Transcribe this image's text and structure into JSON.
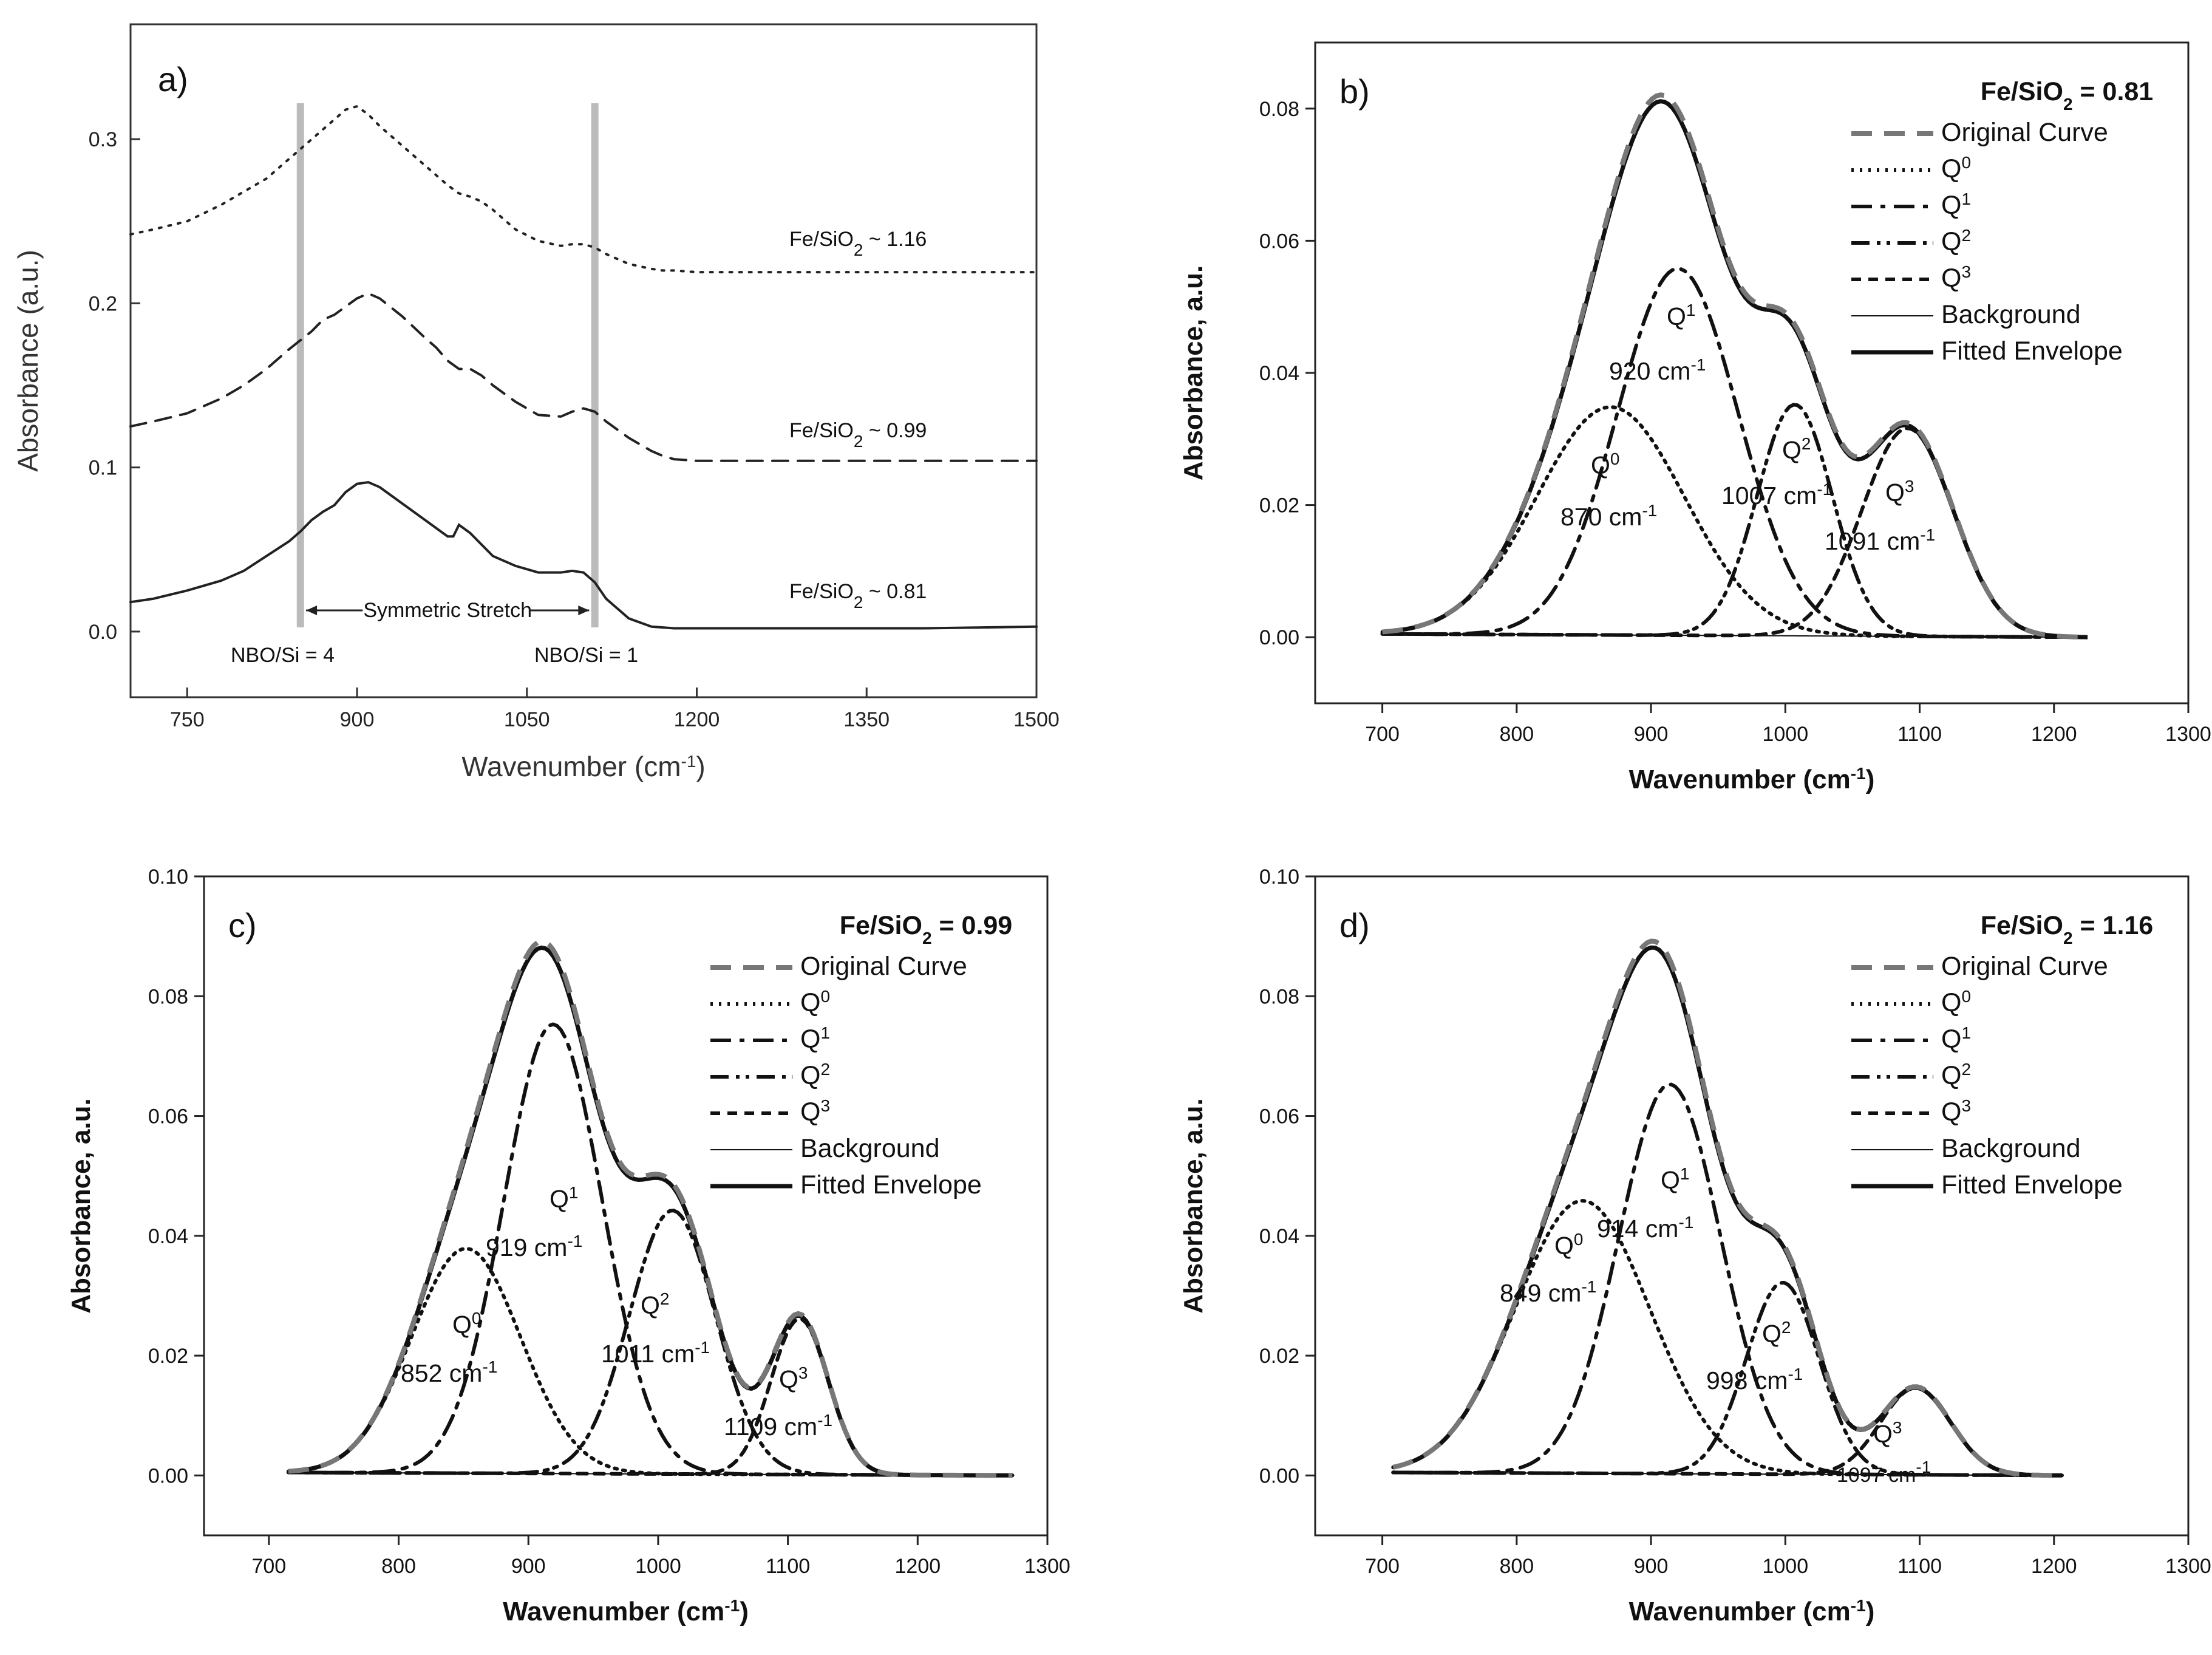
{
  "chart_data": [
    {
      "type": "line",
      "panel_label": "a)",
      "xlabel": "Wavenumber (cm",
      "xlabel_sup": "-1",
      "xlabel_end": ")",
      "ylabel": "Absorbance (a.u.)",
      "xlim": [
        700,
        1500
      ],
      "ylim": [
        -0.04,
        0.37
      ],
      "xticks": [
        750,
        900,
        1050,
        1200,
        1350,
        1500
      ],
      "yticks": [
        0.0,
        0.1,
        0.2,
        0.3
      ],
      "ytick_labels": [
        "0.0",
        "0.1",
        "0.2",
        "0.3"
      ],
      "vlines": [
        850,
        1110
      ],
      "series": [
        {
          "name": "Fe/SiO2 ~ 1.16",
          "label_main": "Fe/SiO",
          "label_sub": "2",
          "label_tail": " ~ 1.16",
          "style": "dotted",
          "offset": 0.22,
          "x": [
            700,
            720,
            750,
            780,
            800,
            820,
            840,
            860,
            880,
            890,
            900,
            910,
            920,
            940,
            960,
            980,
            990,
            1000,
            1010,
            1020,
            1040,
            1060,
            1080,
            1090,
            1100,
            1110,
            1120,
            1140,
            1160,
            1170,
            1180,
            1200,
            1300,
            1400,
            1500
          ],
          "y": [
            0.242,
            0.245,
            0.25,
            0.26,
            0.268,
            0.276,
            0.288,
            0.3,
            0.312,
            0.318,
            0.32,
            0.315,
            0.308,
            0.296,
            0.284,
            0.272,
            0.267,
            0.265,
            0.262,
            0.257,
            0.245,
            0.238,
            0.235,
            0.236,
            0.236,
            0.234,
            0.23,
            0.224,
            0.221,
            0.22,
            0.22,
            0.219,
            0.219,
            0.219,
            0.219
          ]
        },
        {
          "name": "Fe/SiO2 ~ 0.99",
          "label_main": "Fe/SiO",
          "label_sub": "2",
          "label_tail": " ~ 0.99",
          "style": "dashed",
          "offset": 0.105,
          "x": [
            700,
            720,
            750,
            780,
            800,
            820,
            840,
            860,
            870,
            880,
            890,
            900,
            910,
            920,
            940,
            960,
            970,
            980,
            990,
            1000,
            1010,
            1020,
            1040,
            1060,
            1080,
            1090,
            1100,
            1110,
            1120,
            1140,
            1160,
            1170,
            1180,
            1200,
            1300,
            1400,
            1500
          ],
          "y": [
            0.125,
            0.128,
            0.133,
            0.142,
            0.15,
            0.16,
            0.172,
            0.183,
            0.19,
            0.193,
            0.198,
            0.203,
            0.206,
            0.203,
            0.192,
            0.179,
            0.173,
            0.165,
            0.16,
            0.16,
            0.156,
            0.15,
            0.14,
            0.132,
            0.131,
            0.134,
            0.136,
            0.134,
            0.128,
            0.118,
            0.11,
            0.107,
            0.105,
            0.104,
            0.104,
            0.104,
            0.104
          ]
        },
        {
          "name": "Fe/SiO2 ~ 0.81",
          "label_main": "Fe/SiO",
          "label_sub": "2",
          "label_tail": " ~ 0.81",
          "style": "solid",
          "offset": 0.0,
          "x": [
            700,
            720,
            750,
            780,
            800,
            820,
            840,
            850,
            860,
            870,
            880,
            890,
            900,
            910,
            920,
            940,
            960,
            980,
            985,
            990,
            1000,
            1010,
            1020,
            1040,
            1060,
            1080,
            1090,
            1100,
            1110,
            1120,
            1140,
            1160,
            1180,
            1200,
            1300,
            1400,
            1500
          ],
          "y": [
            0.018,
            0.02,
            0.025,
            0.031,
            0.037,
            0.046,
            0.055,
            0.061,
            0.068,
            0.073,
            0.077,
            0.085,
            0.09,
            0.091,
            0.088,
            0.078,
            0.068,
            0.058,
            0.058,
            0.065,
            0.06,
            0.053,
            0.046,
            0.04,
            0.036,
            0.036,
            0.037,
            0.036,
            0.03,
            0.02,
            0.008,
            0.003,
            0.002,
            0.002,
            0.002,
            0.002,
            0.003
          ]
        }
      ],
      "annotations": {
        "nbo_left": "NBO/Si = 4",
        "nbo_right": "NBO/Si = 1",
        "symmetric": "Symmetric Stretch"
      }
    },
    {
      "type": "line",
      "panel_label": "b)",
      "title_main": "Fe/SiO",
      "title_sub": "2",
      "title_tail": " = 0.81",
      "xlabel": "Wavenumber (cm",
      "xlabel_sup": "-1",
      "xlabel_end": ")",
      "ylabel": "Absorbance, a.u.",
      "xlim": [
        650,
        1300
      ],
      "ylim": [
        -0.01,
        0.09
      ],
      "xticks": [
        700,
        800,
        900,
        1000,
        1100,
        1200,
        1300
      ],
      "yticks": [
        0.0,
        0.02,
        0.04,
        0.06,
        0.08
      ],
      "ytick_labels": [
        "0.00",
        "0.02",
        "0.04",
        "0.06",
        "0.08"
      ],
      "x_range": [
        700,
        1225
      ],
      "peaks": [
        {
          "name": "Q0",
          "center": 870,
          "amp": 0.0345,
          "sigma": 55
        },
        {
          "name": "Q1",
          "center": 920,
          "amp": 0.0555,
          "sigma": 45
        },
        {
          "name": "Q2",
          "center": 1007,
          "amp": 0.035,
          "sigma": 28
        },
        {
          "name": "Q3",
          "center": 1091,
          "amp": 0.0315,
          "sigma": 34
        }
      ],
      "peak_labels": [
        {
          "q": "Q",
          "sup": "0",
          "wn": "870 cm",
          "wsup": "-1"
        },
        {
          "q": "Q",
          "sup": "1",
          "wn": "920 cm",
          "wsup": "-1"
        },
        {
          "q": "Q",
          "sup": "2",
          "wn": "1007 cm",
          "wsup": "-1"
        },
        {
          "q": "Q",
          "sup": "3",
          "wn": "1091 cm",
          "wsup": "-1"
        }
      ],
      "legend": [
        "Original Curve",
        "Q0",
        "Q1",
        "Q2",
        "Q3",
        "Background",
        "Fitted Envelope"
      ]
    },
    {
      "type": "line",
      "panel_label": "c)",
      "title_main": "Fe/SiO",
      "title_sub": "2",
      "title_tail": " = 0.99",
      "xlabel": "Wavenumber (cm",
      "xlabel_sup": "-1",
      "xlabel_end": ")",
      "ylabel": "Absorbance, a.u.",
      "xlim": [
        650,
        1300
      ],
      "ylim": [
        -0.01,
        0.1
      ],
      "xticks": [
        700,
        800,
        900,
        1000,
        1100,
        1200,
        1300
      ],
      "yticks": [
        0.0,
        0.02,
        0.04,
        0.06,
        0.08,
        0.1
      ],
      "ytick_labels": [
        "0.00",
        "0.02",
        "0.04",
        "0.06",
        "0.08",
        "0.10"
      ],
      "x_range": [
        715,
        1275
      ],
      "peaks": [
        {
          "name": "Q0",
          "center": 852,
          "amp": 0.0375,
          "sigma": 42
        },
        {
          "name": "Q1",
          "center": 919,
          "amp": 0.075,
          "sigma": 38
        },
        {
          "name": "Q2",
          "center": 1011,
          "amp": 0.044,
          "sigma": 33
        },
        {
          "name": "Q3",
          "center": 1109,
          "amp": 0.026,
          "sigma": 22
        }
      ],
      "peak_labels": [
        {
          "q": "Q",
          "sup": "0",
          "wn": "852 cm",
          "wsup": "-1"
        },
        {
          "q": "Q",
          "sup": "1",
          "wn": "919 cm",
          "wsup": "-1"
        },
        {
          "q": "Q",
          "sup": "2",
          "wn": "1011 cm",
          "wsup": "-1"
        },
        {
          "q": "Q",
          "sup": "3",
          "wn": "1109 cm",
          "wsup": "-1"
        }
      ],
      "legend": [
        "Original Curve",
        "Q0",
        "Q1",
        "Q2",
        "Q3",
        "Background",
        "Fitted Envelope"
      ]
    },
    {
      "type": "line",
      "panel_label": "d)",
      "title_main": "Fe/SiO",
      "title_sub": "2",
      "title_tail": " = 1.16",
      "xlabel": "Wavenumber (cm",
      "xlabel_sup": "-1",
      "xlabel_end": ")",
      "ylabel": "Absorbance, a.u.",
      "xlim": [
        650,
        1300
      ],
      "ylim": [
        -0.01,
        0.1
      ],
      "xticks": [
        700,
        800,
        900,
        1000,
        1100,
        1200,
        1300
      ],
      "yticks": [
        0.0,
        0.02,
        0.04,
        0.06,
        0.08,
        0.1
      ],
      "ytick_labels": [
        "0.00",
        "0.02",
        "0.04",
        "0.06",
        "0.08",
        "0.10"
      ],
      "x_range": [
        708,
        1208
      ],
      "peaks": [
        {
          "name": "Q0",
          "center": 849,
          "amp": 0.0455,
          "sigma": 50
        },
        {
          "name": "Q1",
          "center": 914,
          "amp": 0.065,
          "sigma": 38
        },
        {
          "name": "Q2",
          "center": 998,
          "amp": 0.032,
          "sigma": 27
        },
        {
          "name": "Q3",
          "center": 1097,
          "amp": 0.0145,
          "sigma": 26
        }
      ],
      "peak_labels": [
        {
          "q": "Q",
          "sup": "0",
          "wn": "849 cm",
          "wsup": "-1"
        },
        {
          "q": "Q",
          "sup": "1",
          "wn": "914 cm",
          "wsup": "-1"
        },
        {
          "q": "Q",
          "sup": "2",
          "wn": "998 cm",
          "wsup": "-1"
        },
        {
          "q": "Q",
          "sup": "3",
          "wn": "1097 cm",
          "wsup": "-1"
        }
      ],
      "legend": [
        "Original Curve",
        "Q0",
        "Q1",
        "Q2",
        "Q3",
        "Background",
        "Fitted Envelope"
      ]
    }
  ]
}
